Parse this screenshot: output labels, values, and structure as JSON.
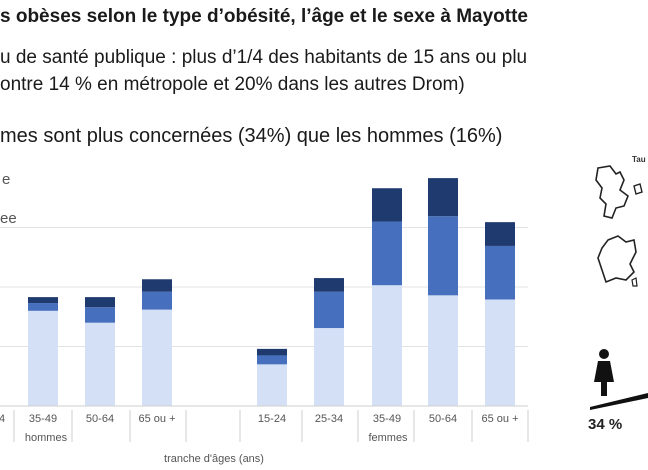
{
  "slide": {
    "title": "s obèses selon le type d’obésité, l’âge et le sexe à Mayotte",
    "line1": "u de santé publique : plus d’1/4 des habitants de 15 ans ou plu",
    "line2": "ontre 14 % en métropole et 20% dans les autres Drom)",
    "line3": "mes sont plus concernées (34%) que les hommes (16%)",
    "side_corner_label": "Tau",
    "female_stat": "34 %"
  },
  "colors": {
    "light": "#d4e0f5",
    "medium": "#4670bd",
    "dark": "#1f3a6e",
    "grid": "#e3e3e3",
    "axis_text": "#555555"
  },
  "chart_data": {
    "type": "bar",
    "stacked": true,
    "xlabel": "tranche d'âges (ans)",
    "ylabel": "",
    "y_ticks_visible": [
      "e",
      "ee"
    ],
    "groups": [
      {
        "name": "hommes",
        "categories": [
          "4",
          "35-49",
          "50-64",
          "65 ou +"
        ]
      },
      {
        "name": "femmes",
        "categories": [
          "15-24",
          "25-34",
          "35-49",
          "50-64",
          "65 ou +"
        ]
      }
    ],
    "categories": [
      "4",
      "35-49",
      "50-64",
      "65 ou +",
      "15-24",
      "25-34",
      "35-49",
      "50-64",
      "65 ou +"
    ],
    "series": [
      {
        "values": [
          null,
          16.0,
          14.0,
          16.2,
          7.0,
          13.1,
          20.3,
          18.6,
          17.9
        ]
      },
      {
        "values": [
          null,
          1.3,
          2.6,
          3.0,
          1.5,
          6.1,
          10.7,
          13.3,
          9.0
        ]
      },
      {
        "values": [
          null,
          1.0,
          1.7,
          2.1,
          1.1,
          2.3,
          5.6,
          6.4,
          4.0
        ]
      }
    ],
    "ylim": [
      0,
      40
    ],
    "grid": true
  }
}
